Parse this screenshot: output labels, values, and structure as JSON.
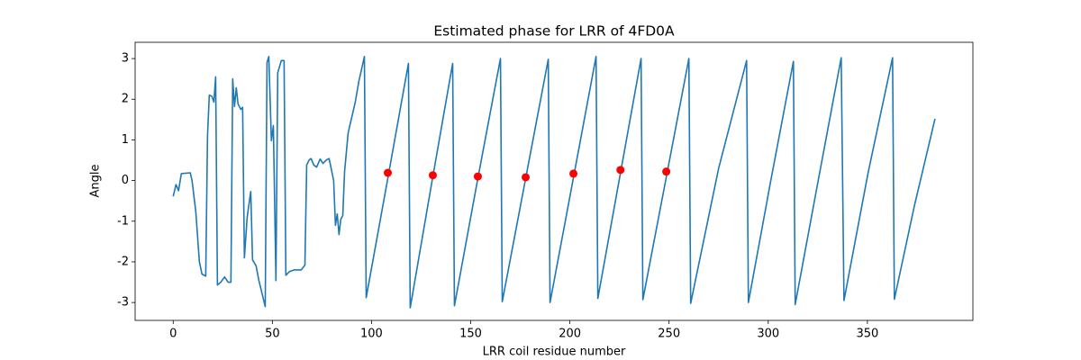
{
  "chart_data": {
    "type": "line",
    "title": "Estimated phase for LRR of 4FD0A",
    "xlabel": "LRR coil residue number",
    "ylabel": "Angle",
    "color": "#1f77b4",
    "x": [
      0,
      1.4,
      2.7,
      4.1,
      8.6,
      9.5,
      11.4,
      13.2,
      14.5,
      16.4,
      17.3,
      18.2,
      19.5,
      20.5,
      21.4,
      22.3,
      24,
      25.9,
      27.7,
      29.1,
      30,
      30.9,
      31.8,
      32.7,
      34.1,
      35,
      35.9,
      37.3,
      39.1,
      40,
      41.8,
      43.2,
      46.4,
      47.3,
      48.2,
      49.5,
      50.5,
      51.8,
      52.7,
      54.5,
      55.9,
      56.8,
      58.6,
      60.9,
      64.5,
      66.4,
      67.3,
      68.6,
      69.5,
      70.9,
      72.3,
      74.1,
      75.5,
      77.3,
      78.6,
      80.9,
      81.8,
      82.7,
      83.6,
      84.5,
      85.5,
      86.4,
      88.2,
      90,
      91.8,
      93.6,
      96.4,
      97.3,
      108,
      118.6,
      119.5,
      130.2,
      140.9,
      141.8,
      153.4,
      165,
      165.9,
      177.5,
      189.1,
      190,
      201.6,
      213.2,
      214.1,
      225,
      235.9,
      236.8,
      248.4,
      260,
      260.9,
      275,
      289.1,
      290,
      301.3,
      312.7,
      313.6,
      325.2,
      336.8,
      338.2,
      350.4,
      362.7,
      363.6,
      373.8,
      384.1
    ],
    "values": [
      -0.39,
      -0.1,
      -0.25,
      0.17,
      0.19,
      0,
      -0.77,
      -2.0,
      -2.3,
      -2.35,
      1.1,
      2.1,
      2.07,
      1.93,
      2.55,
      -2.57,
      -2.5,
      -2.37,
      -2.5,
      -2.5,
      2.5,
      1.82,
      2.28,
      1.88,
      1.75,
      1.8,
      -1.9,
      -0.9,
      -0.27,
      -1.95,
      -2.1,
      -2.46,
      -3.1,
      2.9,
      3.05,
      0.98,
      1.35,
      -2.46,
      2.65,
      2.95,
      2.95,
      -2.33,
      -2.24,
      -2.2,
      -2.2,
      -2.08,
      0.38,
      0.51,
      0.54,
      0.38,
      0.33,
      0.53,
      0.42,
      0.51,
      0.54,
      0,
      -1.1,
      -0.82,
      -1.33,
      -0.95,
      -0.86,
      0.22,
      1.17,
      1.55,
      1.93,
      2.44,
      3.05,
      -2.88,
      0,
      2.88,
      -3.13,
      -0.1,
      2.88,
      -3.08,
      0,
      3.0,
      -2.98,
      0,
      2.98,
      -3.0,
      0.02,
      3.05,
      -2.9,
      0.05,
      3.0,
      -2.93,
      0.03,
      3.0,
      -3.02,
      0.3,
      2.95,
      -3.0,
      0,
      2.93,
      -3.05,
      0,
      3.02,
      -2.95,
      0.2,
      3.02,
      -2.92,
      -0.6,
      1.52
    ],
    "markers": {
      "color": "#ff0000",
      "x": [
        108.2,
        130.9,
        153.6,
        177.7,
        201.8,
        225.5,
        248.6
      ],
      "values": [
        0.19,
        0.13,
        0.1,
        0.08,
        0.17,
        0.26,
        0.22
      ]
    },
    "xlim": [
      -19.2,
      403.2
    ],
    "ylim": [
      -3.44,
      3.4
    ],
    "xticks": [
      0,
      50,
      100,
      150,
      200,
      250,
      300,
      350
    ],
    "yticks": [
      -3,
      -2,
      -1,
      0,
      1,
      2,
      3
    ]
  }
}
